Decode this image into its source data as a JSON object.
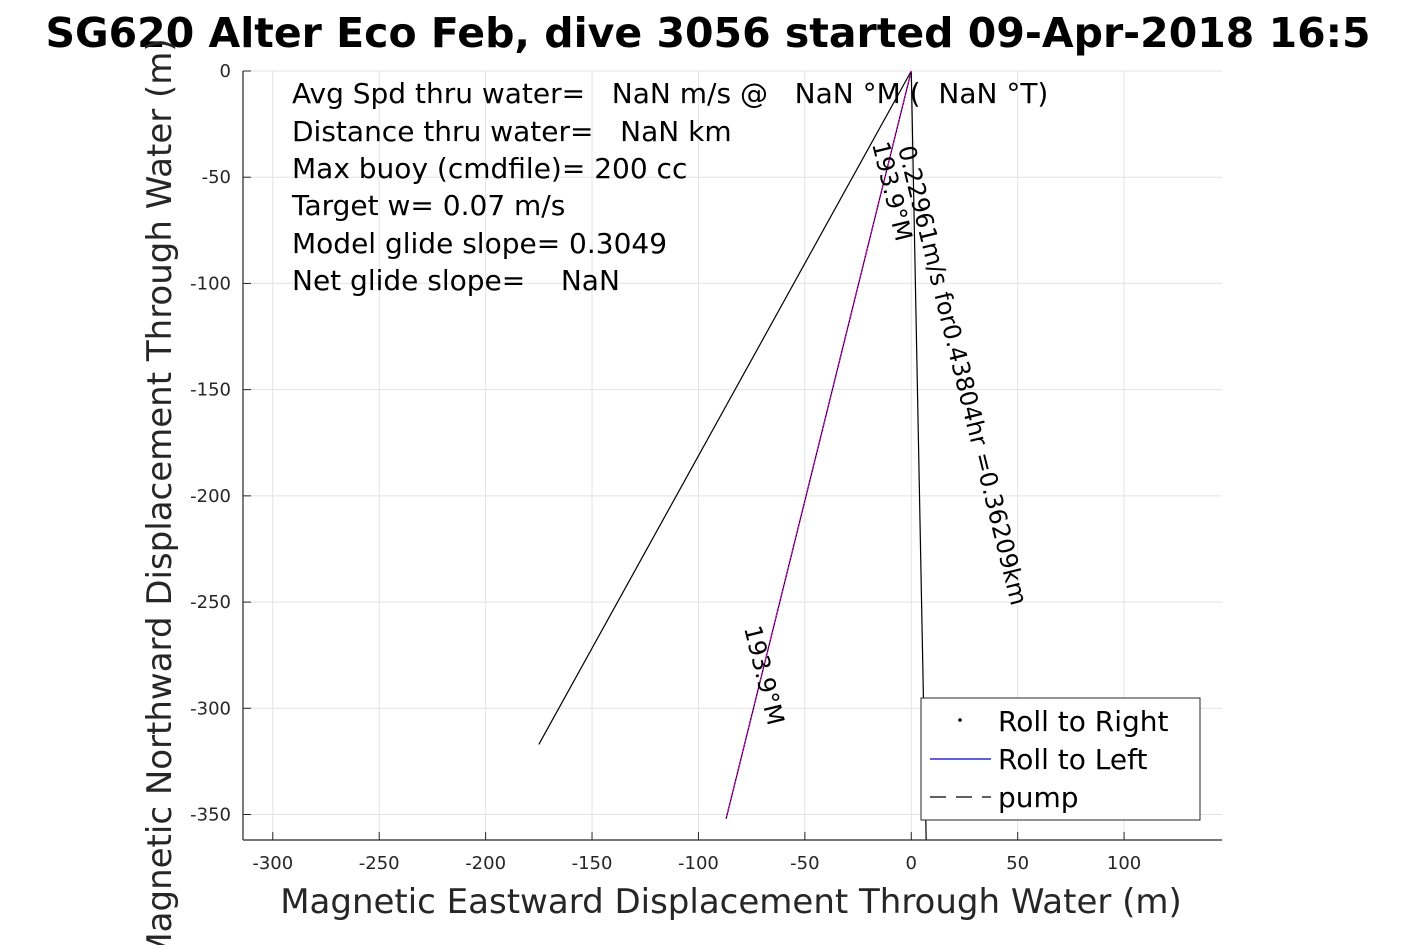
{
  "chart_data": {
    "type": "line",
    "title": "SG620 Alter Eco Feb, dive 3056 started 09-Apr-2018 16:5",
    "xlabel": "Magnetic Eastward Displacement Through Water (m)",
    "ylabel": "Magnetic Northward Displacement Through Water (m)",
    "xlim": [
      -314,
      146
    ],
    "ylim": [
      -362,
      0
    ],
    "xticks": [
      -300,
      -250,
      -200,
      -150,
      -100,
      -50,
      0,
      50,
      100
    ],
    "yticks": [
      0,
      -50,
      -100,
      -150,
      -200,
      -250,
      -300,
      -350
    ],
    "grid": true,
    "legend": {
      "placement": "bottom-right",
      "entries": [
        "Roll to Right",
        "Roll to Left",
        "pump"
      ]
    },
    "annotations": [
      "Avg Spd thru water=   NaN m/s @   NaN °M (  NaN °T)",
      "Distance thru water=   NaN km",
      "Max buoy (cmdfile)= 200 cc",
      "Target w= 0.07 m/s",
      "Model glide slope= 0.3049",
      "Net glide slope=    NaN"
    ],
    "rotated_labels": [
      "0.22961m/s for0.43804hr =0.36209km",
      "193.9°M",
      "193.9°M"
    ],
    "series": [
      {
        "name": "",
        "style": "solid",
        "color": "#000000",
        "x": [
          0,
          -175
        ],
        "y": [
          0,
          -317
        ]
      },
      {
        "name": "",
        "style": "solid",
        "color": "#000000",
        "x": [
          0,
          7
        ],
        "y": [
          0,
          -362
        ]
      },
      {
        "name": "",
        "style": "solid",
        "color": "#000000",
        "x": [
          0,
          -87
        ],
        "y": [
          0,
          -352
        ]
      },
      {
        "name": "",
        "style": "dotted",
        "color": "#ff00ff",
        "x": [
          0,
          -87
        ],
        "y": [
          0,
          -352
        ]
      }
    ],
    "colors": {
      "roll_right": "#000000",
      "roll_left": "#0000cc",
      "pump": "#000000",
      "track": "#ff00ff"
    }
  }
}
